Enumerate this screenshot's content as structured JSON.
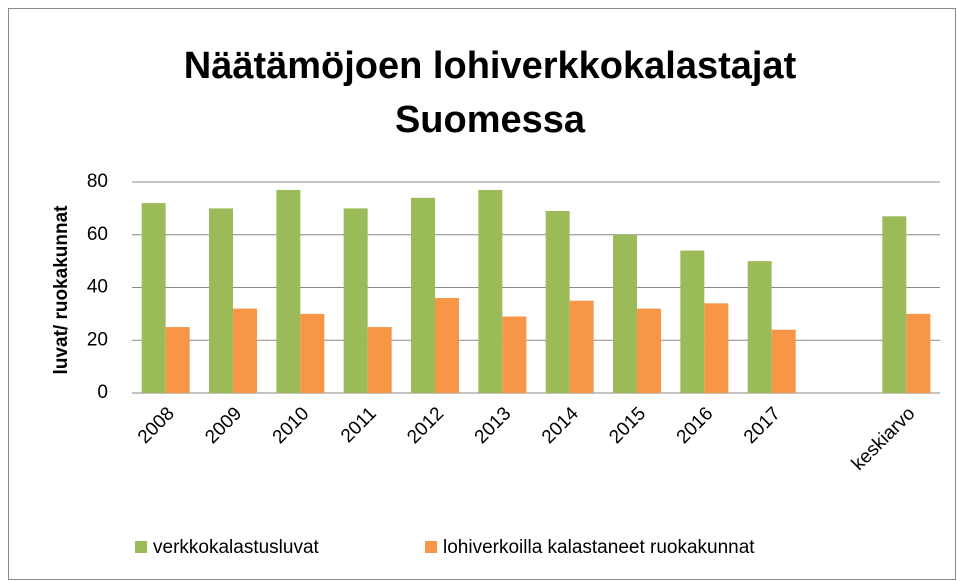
{
  "chart_data": {
    "type": "bar",
    "title": [
      "Näätämöjoen lohiverkkokalastajat",
      "Suomessa"
    ],
    "y_label": "luvat/ ruokakunnat",
    "categories": [
      "2008",
      "2009",
      "2010",
      "2011",
      "2012",
      "2013",
      "2014",
      "2015",
      "2016",
      "2017",
      null,
      "keskiarvo"
    ],
    "series": [
      {
        "name": "verkkokalastusluvat",
        "color": "#9bbb59",
        "values": [
          72,
          70,
          77,
          70,
          74,
          77,
          69,
          60,
          54,
          50,
          null,
          67
        ]
      },
      {
        "name": "lohiverkoilla kalastaneet ruokakunnat",
        "color": "#f79646",
        "values": [
          25,
          32,
          30,
          25,
          36,
          29,
          35,
          32,
          34,
          24,
          null,
          30
        ]
      }
    ],
    "ylim": [
      0,
      80
    ],
    "yticks": [
      0,
      20,
      40,
      60,
      80
    ],
    "grid": true,
    "legend": "bottom"
  }
}
